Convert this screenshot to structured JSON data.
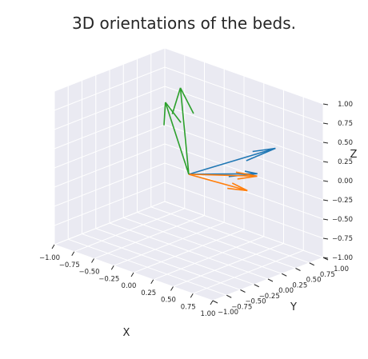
{
  "chart_data": {
    "type": "3d-quiver",
    "title": "3D orientations of the beds.",
    "axes": {
      "x": {
        "label": "X",
        "range": [
          -1.0,
          1.0
        ],
        "ticks": [
          "−1.00",
          "−0.75",
          "−0.50",
          "−0.25",
          "0.00",
          "0.25",
          "0.50",
          "0.75",
          "1.00"
        ]
      },
      "y": {
        "label": "Y",
        "range": [
          -1.0,
          1.0
        ],
        "ticks": [
          "−1.00",
          "−0.75",
          "−0.50",
          "−0.25",
          "0.00",
          "0.25",
          "0.50",
          "0.75",
          "1.00"
        ]
      },
      "z": {
        "label": "Z",
        "range": [
          -1.0,
          1.0
        ],
        "ticks": [
          "−1.00",
          "−0.75",
          "−0.50",
          "−0.25",
          "0.00",
          "0.25",
          "0.50",
          "0.75",
          "1.00"
        ]
      }
    },
    "grid": true,
    "origin": [
      0,
      0,
      0
    ],
    "series": [
      {
        "color": "#1f77b4",
        "vectors": [
          [
            0.85,
            0.35,
            0.55
          ],
          [
            0.9,
            -0.05,
            0.35
          ]
        ]
      },
      {
        "color": "#ff7f0e",
        "vectors": [
          [
            0.55,
            0.45,
            0.05
          ],
          [
            0.6,
            0.2,
            -0.05
          ]
        ]
      },
      {
        "color": "#2ca02c",
        "vectors": [
          [
            -0.35,
            0.35,
            0.9
          ],
          [
            -0.4,
            0.15,
            0.75
          ]
        ]
      }
    ]
  },
  "colors": {
    "pane": "#eaeaf2",
    "grid": "#ffffff",
    "text": "#262626"
  }
}
